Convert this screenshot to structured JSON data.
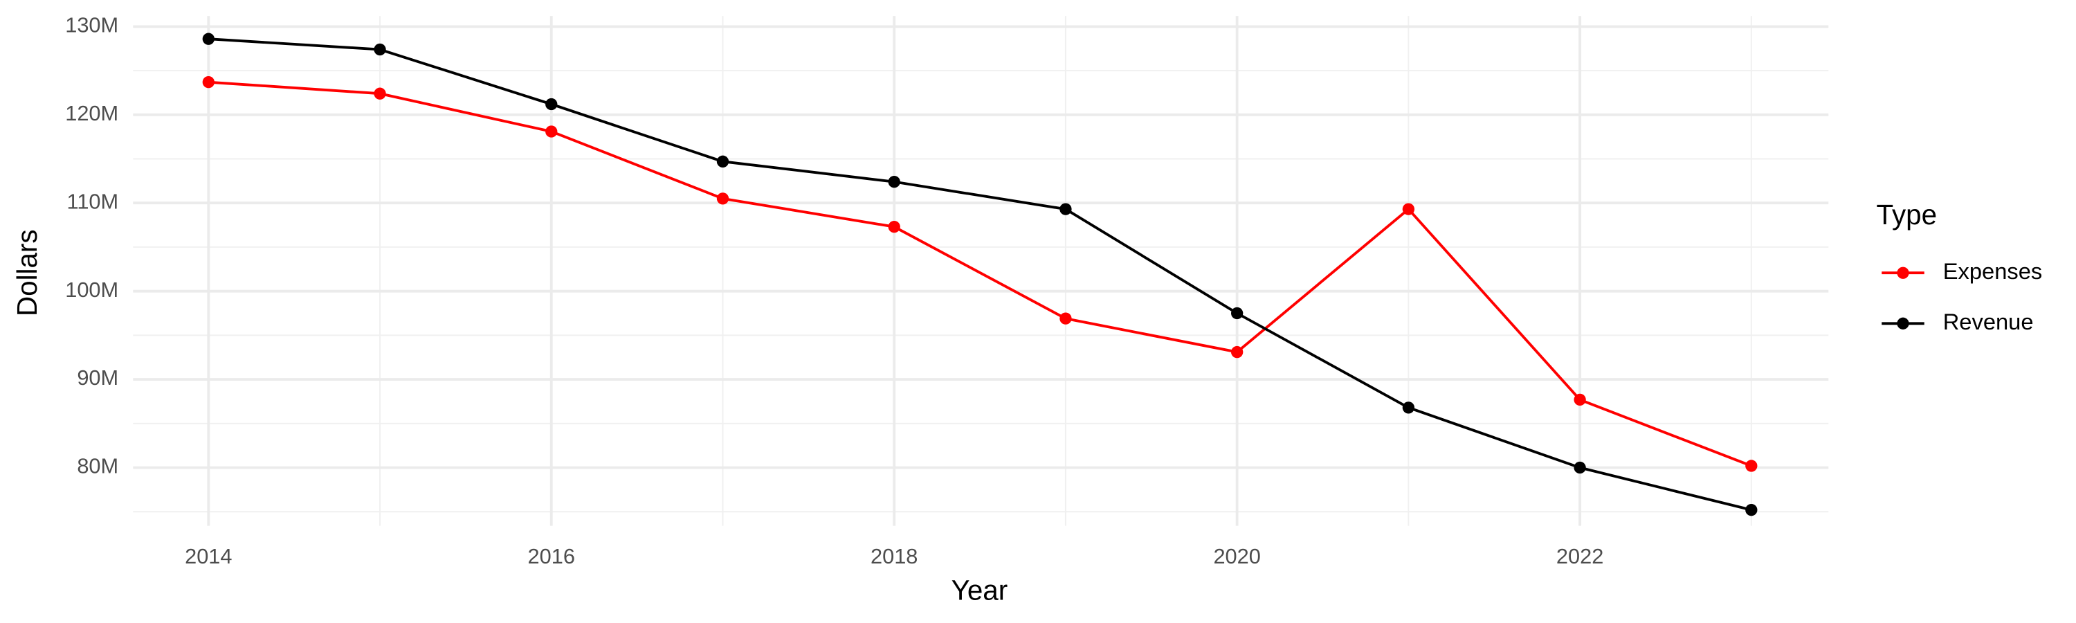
{
  "chart_data": {
    "type": "line",
    "x_label": "Year",
    "y_label": "Dollars",
    "legend_title": "Type",
    "legend_position": "right",
    "grid": true,
    "x": [
      2014,
      2015,
      2016,
      2017,
      2018,
      2019,
      2020,
      2021,
      2022,
      2023
    ],
    "series": [
      {
        "name": "Expenses",
        "color": "#ff0000",
        "values": [
          123700000,
          122400000,
          118100000,
          110500000,
          107300000,
          96900000,
          93100000,
          109300000,
          87700000,
          80200000
        ]
      },
      {
        "name": "Revenue",
        "color": "#000000",
        "values": [
          128600000,
          127400000,
          121200000,
          114700000,
          112400000,
          109300000,
          97500000,
          86800000,
          80000000,
          75200000
        ]
      }
    ],
    "xlim": [
      2013.56,
      2023.45
    ],
    "xticks": [
      2014,
      2016,
      2018,
      2020,
      2022
    ],
    "ylim": [
      73400000,
      131200000
    ],
    "yticks": [
      {
        "value": 80000000,
        "label": "80M"
      },
      {
        "value": 90000000,
        "label": "90M"
      },
      {
        "value": 100000000,
        "label": "100M"
      },
      {
        "value": 110000000,
        "label": "110M"
      },
      {
        "value": 120000000,
        "label": "120M"
      },
      {
        "value": 130000000,
        "label": "130M"
      }
    ]
  }
}
